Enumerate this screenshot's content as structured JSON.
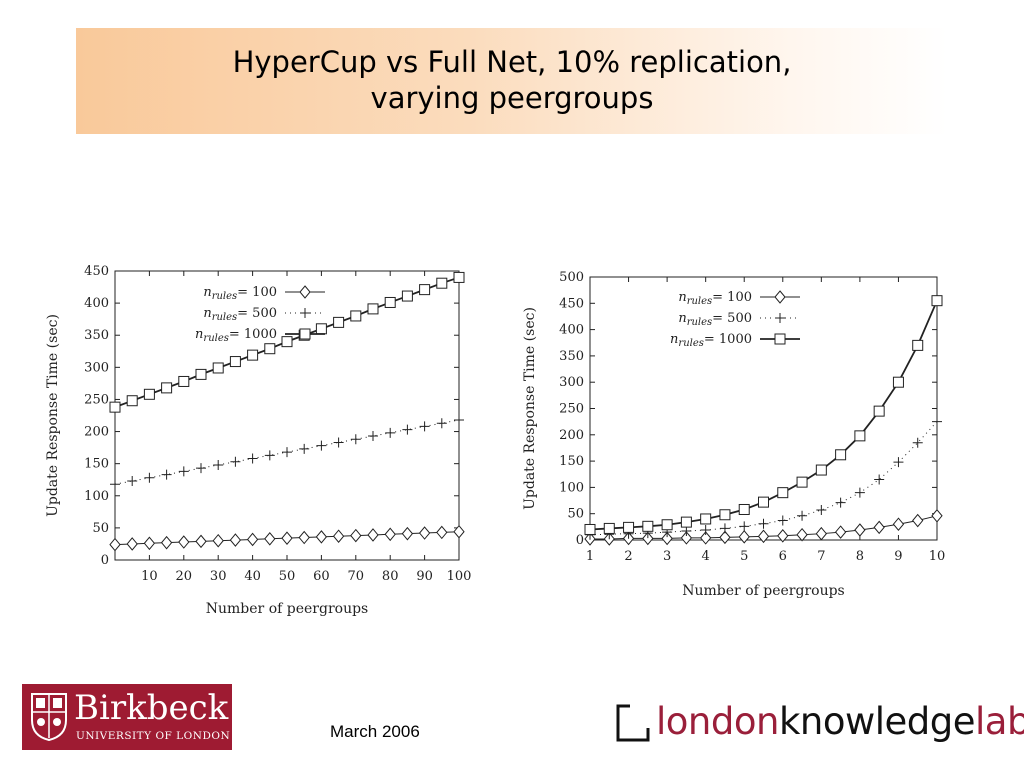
{
  "slide": {
    "title_line1": "HyperCup vs Full Net, 10% replication,",
    "title_line2": "varying peergroups",
    "date": "March 2006"
  },
  "logos": {
    "birkbeck_name": "Birkbeck",
    "birkbeck_sub": "UNIVERSITY OF LONDON",
    "lkl_part1": "london",
    "lkl_part2": "knowledge",
    "lkl_part3": "lab",
    "birkbeck_color": "#9e1b32",
    "lkl_accent": "#9a1f3a"
  },
  "chart_data": [
    {
      "type": "line",
      "xlabel": "Number of peergroups",
      "ylabel": "Update Response Time (sec)",
      "xlim": [
        0,
        100
      ],
      "ylim": [
        0,
        450
      ],
      "xticks": [
        10,
        20,
        30,
        40,
        50,
        60,
        70,
        80,
        90,
        100
      ],
      "yticks": [
        0,
        50,
        100,
        150,
        200,
        250,
        300,
        350,
        400,
        450
      ],
      "legend_position": "top-left",
      "series": [
        {
          "name": "= 100",
          "marker": "diamond",
          "style": "solid",
          "x": [
            0,
            5,
            10,
            15,
            20,
            25,
            30,
            35,
            40,
            45,
            50,
            55,
            60,
            65,
            70,
            75,
            80,
            85,
            90,
            95,
            100
          ],
          "y": [
            24,
            25,
            26,
            27,
            28,
            29,
            30,
            31,
            32,
            33,
            34,
            35,
            36,
            37,
            38,
            39,
            40,
            41,
            42,
            43,
            44
          ]
        },
        {
          "name": "= 500",
          "marker": "plus",
          "style": "dotted",
          "x": [
            0,
            5,
            10,
            15,
            20,
            25,
            30,
            35,
            40,
            45,
            50,
            55,
            60,
            65,
            70,
            75,
            80,
            85,
            90,
            95,
            100
          ],
          "y": [
            118,
            123,
            128,
            133,
            138,
            143,
            148,
            153,
            158,
            163,
            168,
            173,
            178,
            183,
            188,
            193,
            198,
            203,
            208,
            213,
            218
          ]
        },
        {
          "name": "= 1000",
          "marker": "square",
          "style": "solid",
          "x": [
            0,
            5,
            10,
            15,
            20,
            25,
            30,
            35,
            40,
            45,
            50,
            55,
            60,
            65,
            70,
            75,
            80,
            85,
            90,
            95,
            100
          ],
          "y": [
            238,
            248,
            258,
            268,
            278,
            289,
            299,
            309,
            319,
            329,
            340,
            350,
            360,
            370,
            380,
            391,
            401,
            411,
            421,
            431,
            440
          ]
        }
      ]
    },
    {
      "type": "line",
      "xlabel": "Number of peergroups",
      "ylabel": "Update Response Time (sec)",
      "xlim": [
        1,
        10
      ],
      "ylim": [
        0,
        500
      ],
      "xticks": [
        1,
        2,
        3,
        4,
        5,
        6,
        7,
        8,
        9,
        10
      ],
      "yticks": [
        0,
        50,
        100,
        150,
        200,
        250,
        300,
        350,
        400,
        450,
        500
      ],
      "legend_position": "top-right",
      "series": [
        {
          "name": "= 100",
          "marker": "diamond",
          "style": "solid",
          "x": [
            1,
            1.5,
            2,
            2.5,
            3,
            3.5,
            4,
            4.5,
            5,
            5.5,
            6,
            6.5,
            7,
            7.5,
            8,
            8.5,
            9,
            9.5,
            10
          ],
          "y": [
            2,
            2,
            3,
            3,
            3,
            4,
            4,
            5,
            6,
            7,
            8,
            10,
            12,
            15,
            19,
            24,
            30,
            37,
            46
          ]
        },
        {
          "name": "= 500",
          "marker": "plus",
          "style": "dotted",
          "x": [
            1,
            1.5,
            2,
            2.5,
            3,
            3.5,
            4,
            4.5,
            5,
            5.5,
            6,
            6.5,
            7,
            7.5,
            8,
            8.5,
            9,
            9.5,
            10
          ],
          "y": [
            10,
            11,
            12,
            13,
            15,
            17,
            19,
            22,
            26,
            31,
            37,
            46,
            57,
            71,
            90,
            115,
            148,
            185,
            225
          ]
        },
        {
          "name": "= 1000",
          "marker": "square",
          "style": "solid",
          "x": [
            1,
            1.5,
            2,
            2.5,
            3,
            3.5,
            4,
            4.5,
            5,
            5.5,
            6,
            6.5,
            7,
            7.5,
            8,
            8.5,
            9,
            9.5,
            10
          ],
          "y": [
            20,
            22,
            24,
            26,
            29,
            34,
            40,
            48,
            58,
            72,
            90,
            110,
            133,
            162,
            198,
            245,
            300,
            370,
            455
          ]
        }
      ]
    }
  ]
}
